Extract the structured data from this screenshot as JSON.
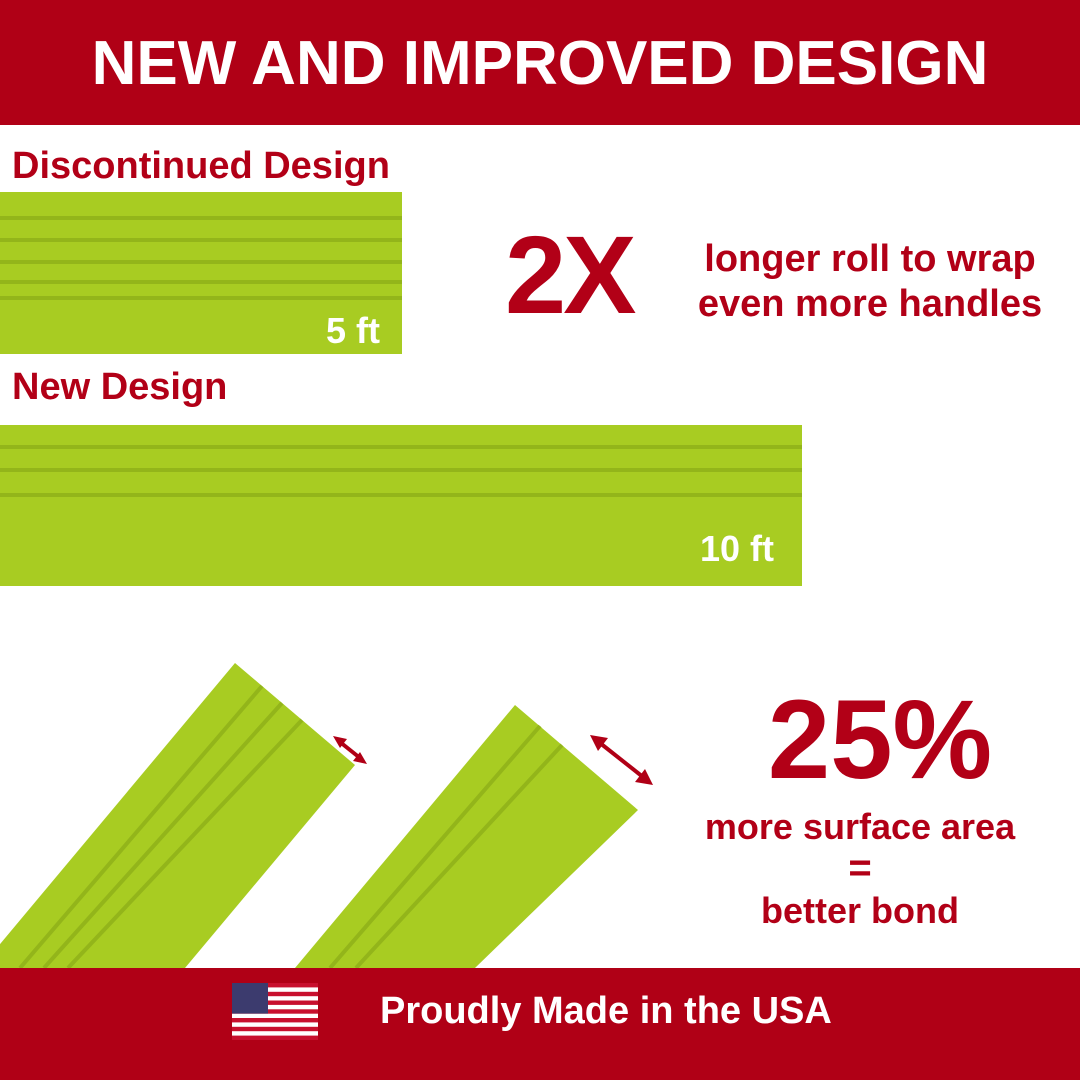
{
  "header": {
    "title": "NEW AND IMPROVED DESIGN"
  },
  "comparison": {
    "old": {
      "label": "Discontinued Design",
      "length": "5 ft"
    },
    "new": {
      "label": "New Design",
      "length": "10 ft"
    },
    "multiplier": "2X",
    "multiplier_text": [
      "longer roll to wrap",
      "even more handles"
    ]
  },
  "surface": {
    "percent": "25%",
    "lines": [
      "more surface area",
      "=",
      "better bond"
    ]
  },
  "footer": {
    "text": "Proudly Made in the USA"
  }
}
